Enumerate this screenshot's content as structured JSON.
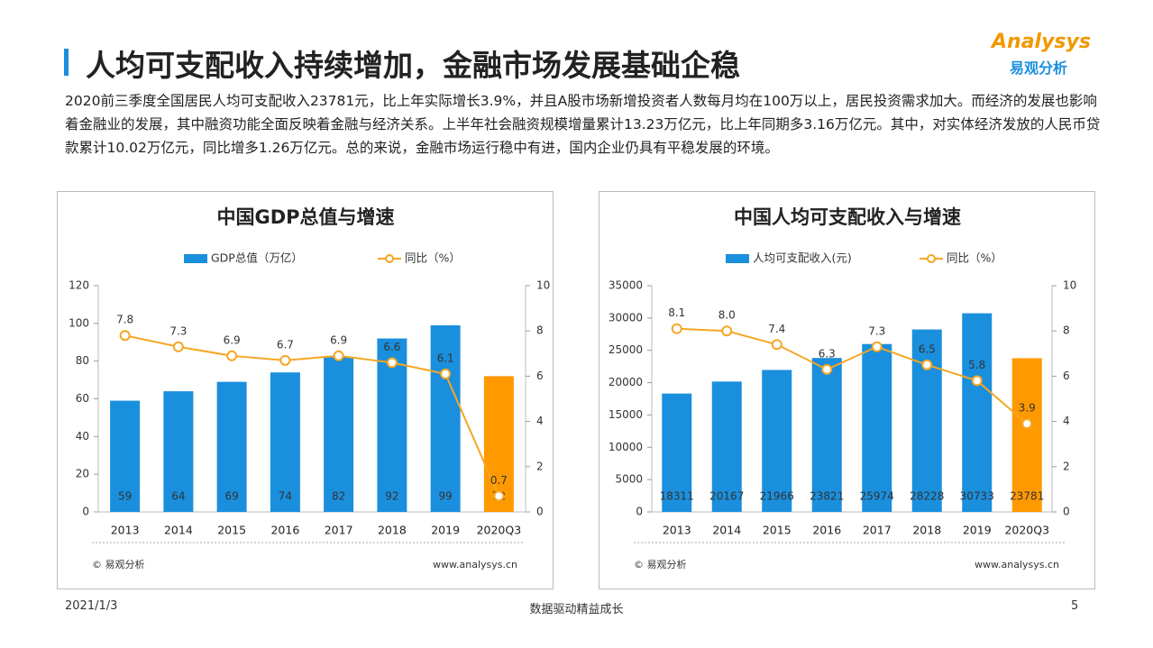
{
  "header": {
    "title": "人均可支配收入持续增加，金融市场发展基础企稳",
    "logo": "Analysys",
    "logo_cn": "易观分析"
  },
  "paragraph": "2020前三季度全国居民人均可支配收入23781元，比上年实际增长3.9%，并且A股市场新增投资者人数每月均在100万以上，居民投资需求加大。而经济的发展也影响着金融业的发展，其中融资功能全面反映着金融与经济关系。上半年社会融资规模增量累计13.23万亿元，比上年同期多3.16万亿元。其中，对实体经济发放的人民币贷款累计10.02万亿元，同比增多1.26万亿元。总的来说，金融市场运行稳中有进，国内企业仍具有平稳发展的环境。",
  "chart_data": [
    {
      "type": "bar",
      "title": "中国GDP总值与增速",
      "categories": [
        "2013",
        "2014",
        "2015",
        "2016",
        "2017",
        "2018",
        "2019",
        "2020Q3"
      ],
      "series": [
        {
          "name": "GDP总值（万亿）",
          "type": "bar",
          "color": "#1a8fdd",
          "colors": [
            "#1a8fdd",
            "#1a8fdd",
            "#1a8fdd",
            "#1a8fdd",
            "#1a8fdd",
            "#1a8fdd",
            "#1a8fdd",
            "#ff9900"
          ],
          "values": [
            59,
            64,
            69,
            74,
            82,
            92,
            99,
            72
          ]
        },
        {
          "name": "同比（%）",
          "type": "line",
          "axis": "y2",
          "color": "#f5a623",
          "values": [
            7.8,
            7.3,
            6.9,
            6.7,
            6.9,
            6.6,
            6.1,
            0.7
          ]
        }
      ],
      "ylim": [
        0,
        120
      ],
      "yticks": [
        0,
        20,
        40,
        60,
        80,
        100,
        120
      ],
      "y2lim": [
        0,
        10
      ],
      "y2ticks": [
        0,
        2,
        4,
        6,
        8,
        10
      ],
      "source": "© 易观分析",
      "website": "www.analysys.cn"
    },
    {
      "type": "bar",
      "title": "中国人均可支配收入与增速",
      "categories": [
        "2013",
        "2014",
        "2015",
        "2016",
        "2017",
        "2018",
        "2019",
        "2020Q3"
      ],
      "series": [
        {
          "name": "人均可支配收入(元)",
          "type": "bar",
          "color": "#1a8fdd",
          "colors": [
            "#1a8fdd",
            "#1a8fdd",
            "#1a8fdd",
            "#1a8fdd",
            "#1a8fdd",
            "#1a8fdd",
            "#1a8fdd",
            "#ff9900"
          ],
          "values": [
            18311,
            20167,
            21966,
            23821,
            25974,
            28228,
            30733,
            23781
          ]
        },
        {
          "name": "同比（%）",
          "type": "line",
          "axis": "y2",
          "color": "#f5a623",
          "values": [
            8.1,
            8.0,
            7.4,
            6.3,
            7.3,
            6.5,
            5.8,
            3.9
          ],
          "value_labels": [
            "8.1",
            "8.0",
            "7.4",
            "6.3",
            "7.3",
            "6.5",
            "5.8",
            "3.9"
          ]
        }
      ],
      "ylim": [
        0,
        35000
      ],
      "yticks": [
        0,
        5000,
        10000,
        15000,
        20000,
        25000,
        30000,
        35000
      ],
      "y2lim": [
        0,
        10
      ],
      "y2ticks": [
        0,
        2,
        4,
        6,
        8,
        10
      ],
      "source": "© 易观分析",
      "website": "www.analysys.cn"
    }
  ],
  "footer": {
    "date": "2021/1/3",
    "slogan": "数据驱动精益成长",
    "page": "5"
  }
}
